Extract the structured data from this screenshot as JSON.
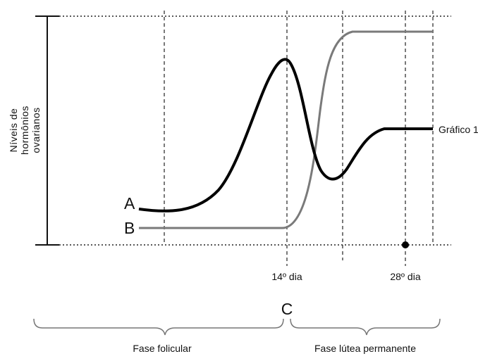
{
  "y_axis_label": [
    "Níveis de",
    "hormônios",
    "ovarianos"
  ],
  "curve_a_label": "A",
  "curve_b_label": "B",
  "graph_label": "Gráfico 1",
  "day14_label": "14º dia",
  "day28_label": "28º dia",
  "point_c_label": "C",
  "phase_follicular": "Fase folicular",
  "phase_luteal": "Fase lútea permanente",
  "colors": {
    "curve_a": "#000000",
    "curve_b": "#7a7a7a",
    "grid": "#222222"
  }
}
